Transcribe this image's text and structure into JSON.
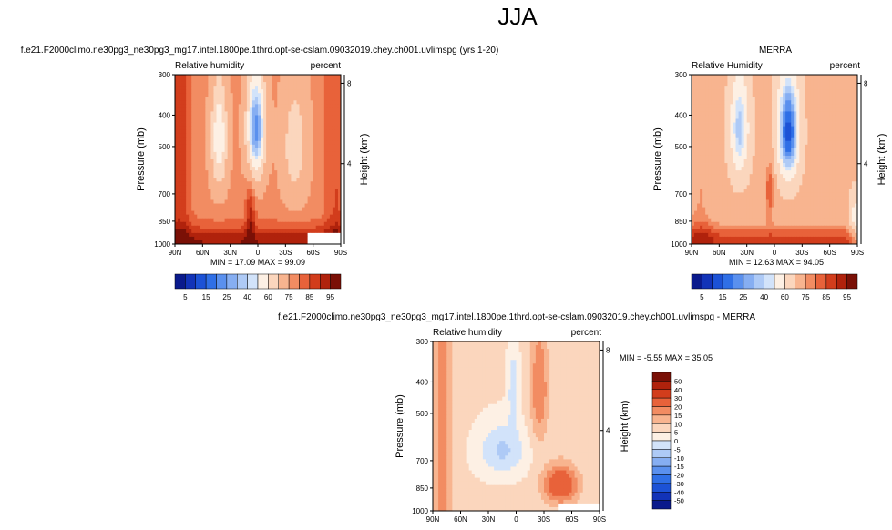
{
  "figure": {
    "title": "JJA"
  },
  "colors": {
    "full_scale": [
      "#0a1a8c",
      "#1233b8",
      "#1c52d6",
      "#2f6fe6",
      "#5a90ee",
      "#86aef2",
      "#aecaf6",
      "#d2e3fa",
      "#fdf0e4",
      "#fbd6bd",
      "#f8b48f",
      "#f28c62",
      "#e8623a",
      "#d23d1c",
      "#b0220c",
      "#7a1006"
    ],
    "diff_scale": [
      "#0a1a8c",
      "#1233b8",
      "#1c52d6",
      "#2f6fe6",
      "#5a90ee",
      "#86aef2",
      "#aecaf6",
      "#d2e3fa",
      "#fdf0e4",
      "#fbd6bd",
      "#f8b48f",
      "#f28c62",
      "#e8623a",
      "#d23d1c",
      "#b0220c",
      "#7a1006"
    ]
  },
  "chart_data": [
    {
      "type": "heatmap",
      "title": "f.e21.F2000climo.ne30pg3_ne30pg3_mg17.intel.1800pe.1thrd.opt-se-cslam.09032019.chey.ch001.uvlimspg (yrs 1-20)",
      "left_label": "Relative humidity",
      "right_label": "percent",
      "ylabel": "Pressure (mb)",
      "y2label": "Height (km)",
      "x_ticks": [
        "90N",
        "60N",
        "30N",
        "0",
        "30S",
        "60S",
        "90S"
      ],
      "x_values": [
        90,
        60,
        30,
        0,
        -30,
        -60,
        -90
      ],
      "y_ticks": [
        "300",
        "400",
        "500",
        "700",
        "850",
        "1000"
      ],
      "y_values": [
        300,
        400,
        500,
        700,
        850,
        1000
      ],
      "y2_ticks": [
        "8",
        "4"
      ],
      "y2_values": [
        8,
        4
      ],
      "ylim": [
        300,
        1000
      ],
      "xlim": [
        90,
        -90
      ],
      "stats": "MIN = 17.09  MAX = 99.09",
      "min": 17.09,
      "max": 99.09,
      "colorbar_labels": [
        "5",
        "15",
        "25",
        "40",
        "60",
        "75",
        "85",
        "95"
      ],
      "levels": [
        5,
        10,
        15,
        20,
        25,
        30,
        35,
        40,
        50,
        60,
        70,
        75,
        80,
        85,
        90,
        95
      ],
      "missing_region": {
        "lat": [
          -55,
          -90
        ],
        "p": [
          920,
          1000
        ]
      },
      "features": [
        {
          "lat": 0,
          "p": 430,
          "value": 22,
          "kind": "min-dry-band"
        },
        {
          "lat": 45,
          "p": 450,
          "value": 40,
          "kind": "dry-band"
        },
        {
          "lat": 5,
          "p": 800,
          "value": 85,
          "kind": "moist-column"
        },
        {
          "lat": 80,
          "p": 980,
          "value": 95,
          "kind": "moist-boundary-layer"
        }
      ]
    },
    {
      "type": "heatmap",
      "title": "MERRA",
      "left_label": "Relative Humidity",
      "right_label": "percent",
      "ylabel": "Pressure (mb)",
      "y2label": "Height (km)",
      "x_ticks": [
        "90N",
        "60N",
        "30N",
        "0",
        "30S",
        "60S",
        "90S"
      ],
      "x_values": [
        90,
        60,
        30,
        0,
        -30,
        -60,
        -90
      ],
      "y_ticks": [
        "300",
        "400",
        "500",
        "700",
        "850",
        "1000"
      ],
      "y_values": [
        300,
        400,
        500,
        700,
        850,
        1000
      ],
      "y2_ticks": [
        "8",
        "4"
      ],
      "y2_values": [
        8,
        4
      ],
      "ylim": [
        300,
        1000
      ],
      "xlim": [
        90,
        -90
      ],
      "stats": "MIN = 12.63  MAX = 94.05",
      "min": 12.63,
      "max": 94.05,
      "colorbar_labels": [
        "5",
        "15",
        "25",
        "40",
        "60",
        "75",
        "85",
        "95"
      ],
      "levels": [
        5,
        10,
        15,
        20,
        25,
        30,
        35,
        40,
        50,
        60,
        70,
        75,
        80,
        85,
        90,
        95
      ],
      "features": [
        {
          "lat": -15,
          "p": 450,
          "value": 13,
          "kind": "min-dry-band"
        },
        {
          "lat": 40,
          "p": 450,
          "value": 30,
          "kind": "dry-band"
        },
        {
          "lat": 5,
          "p": 700,
          "value": 80,
          "kind": "moist-column"
        }
      ]
    },
    {
      "type": "heatmap",
      "title": "f.e21.F2000climo.ne30pg3_ne30pg3_mg17.intel.1800pe.1thrd.opt-se-cslam.09032019.chey.ch001.uvlimspg - MERRA",
      "left_label": "Relative humidity",
      "right_label": "percent",
      "ylabel": "Pressure (mb)",
      "y2label": "Height (km)",
      "x_ticks": [
        "90N",
        "60N",
        "30N",
        "0",
        "30S",
        "60S",
        "90S"
      ],
      "x_values": [
        90,
        60,
        30,
        0,
        -30,
        -60,
        -90
      ],
      "y_ticks": [
        "300",
        "400",
        "500",
        "700",
        "850",
        "1000"
      ],
      "y_values": [
        300,
        400,
        500,
        700,
        850,
        1000
      ],
      "y2_ticks": [
        "8",
        "4"
      ],
      "y2_values": [
        8,
        4
      ],
      "ylim": [
        300,
        1000
      ],
      "xlim": [
        90,
        -90
      ],
      "stats": "MIN =  -5.55   MAX =  35.05",
      "min": -5.55,
      "max": 35.05,
      "colorbar_labels": [
        "50",
        "40",
        "30",
        "20",
        "15",
        "10",
        "5",
        "0",
        "-5",
        "-10",
        "-15",
        "-20",
        "-30",
        "-40",
        "-50"
      ],
      "levels": [
        -50,
        -40,
        -30,
        -20,
        -15,
        -10,
        -5,
        0,
        5,
        10,
        15,
        20,
        30,
        40,
        50
      ],
      "missing_region": {
        "lat": [
          -45,
          -90
        ],
        "p": [
          950,
          1000
        ]
      },
      "features": [
        {
          "lat": -45,
          "p": 860,
          "value": 30,
          "kind": "max-positive"
        },
        {
          "lat": 15,
          "p": 650,
          "value": -5,
          "kind": "negative"
        }
      ]
    }
  ]
}
